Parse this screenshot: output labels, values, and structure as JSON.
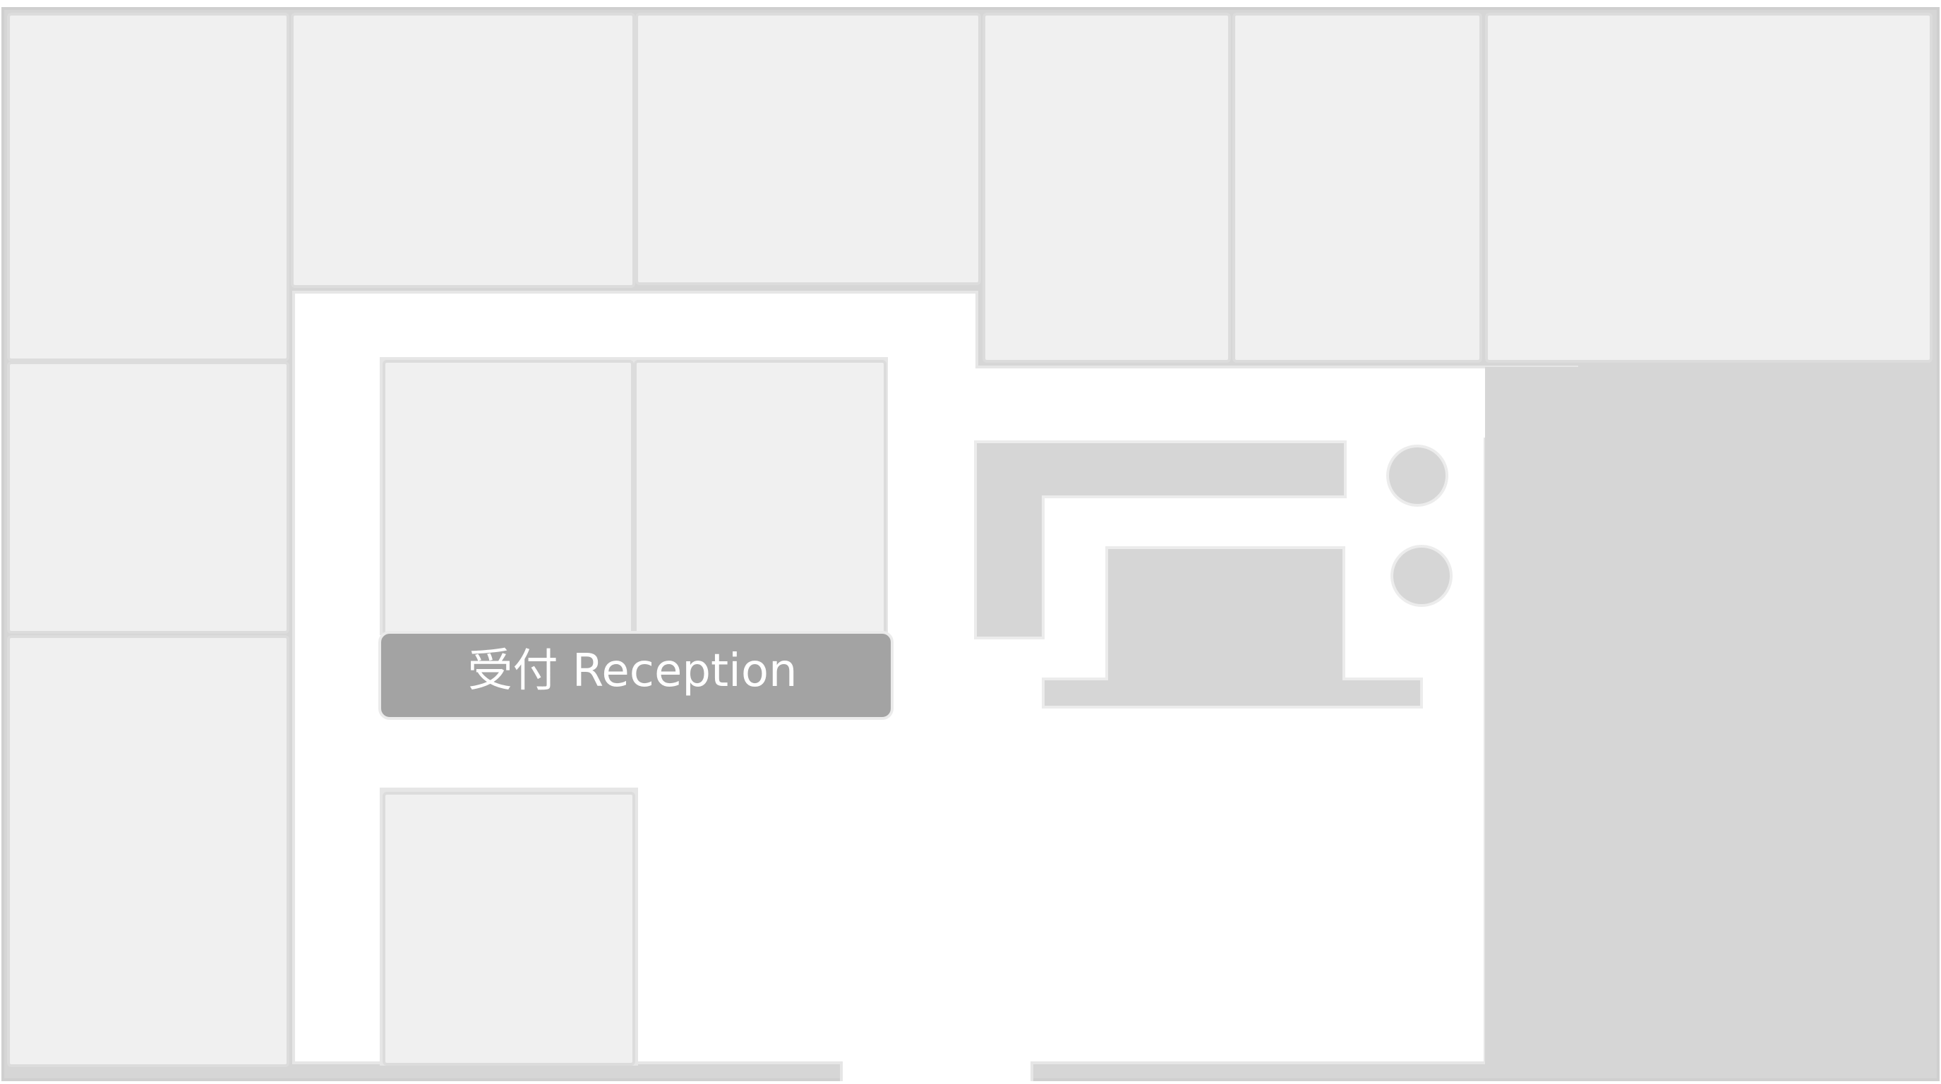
{
  "map": {
    "reception": {
      "label": "受付 Reception"
    },
    "colors": {
      "background": "#ffffff",
      "outer_wall": "#d6d6d6",
      "room_fill": "#f0f0f0",
      "room_stroke": "#dcdcdc",
      "service_area": "#d6d6d6",
      "reception_fill": "#a3a3a3",
      "reception_text": "#ffffff",
      "pillar_fill": "#d6d6d6",
      "pillar_stroke": "#ececec"
    }
  }
}
